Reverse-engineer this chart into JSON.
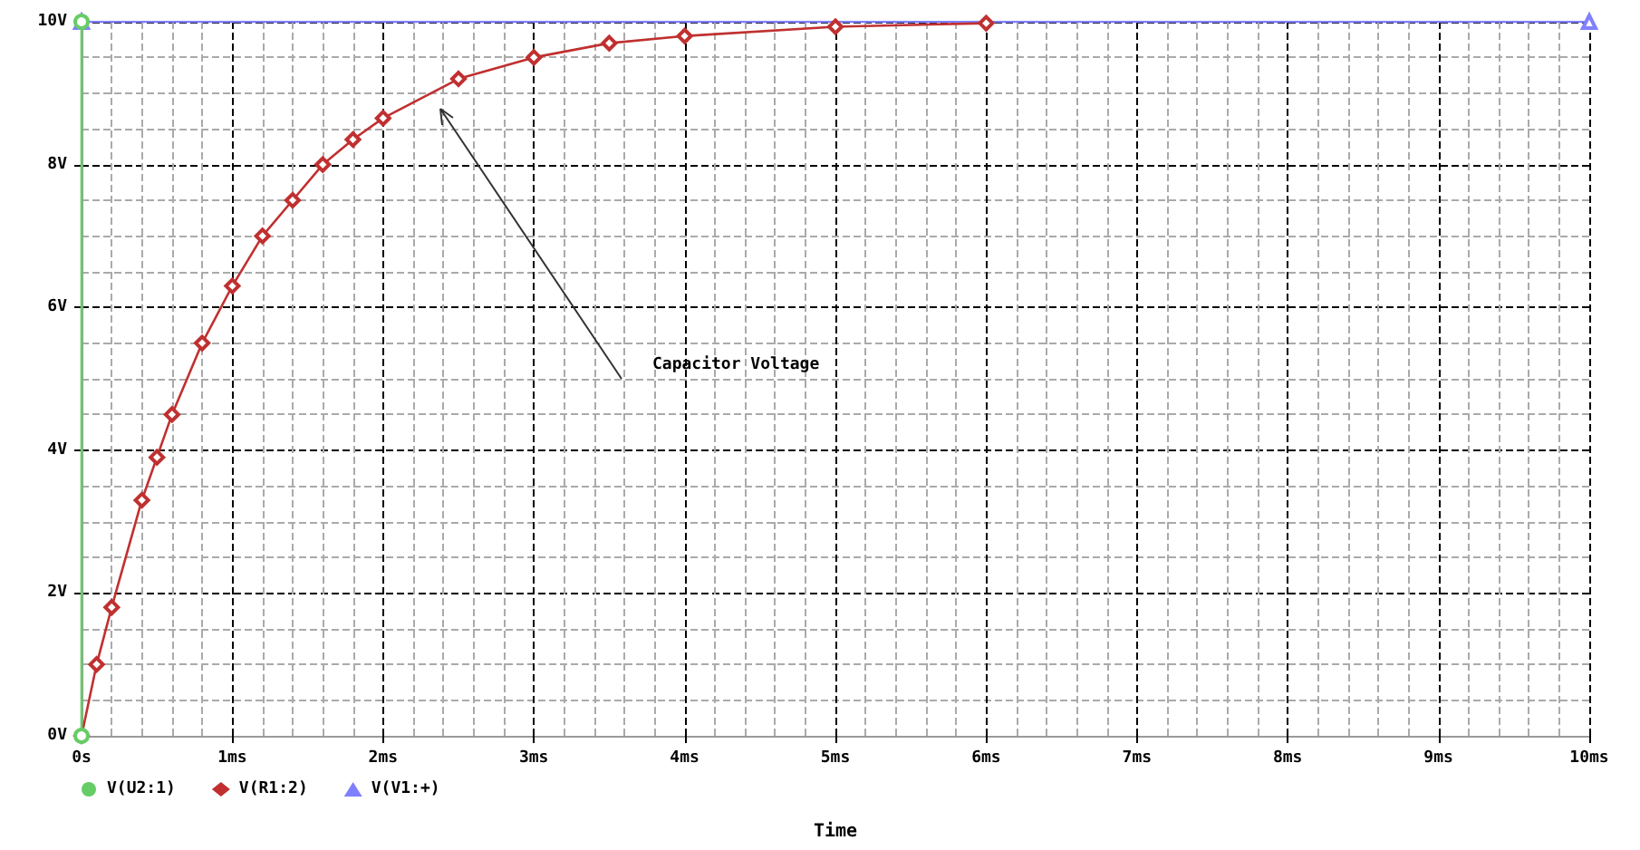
{
  "chart_data": {
    "type": "line",
    "xlabel": "Time",
    "xlim": [
      0,
      10
    ],
    "xticks": [
      {
        "value": 0,
        "label": "0s"
      },
      {
        "value": 1,
        "label": "1ms"
      },
      {
        "value": 2,
        "label": "2ms"
      },
      {
        "value": 3,
        "label": "3ms"
      },
      {
        "value": 4,
        "label": "4ms"
      },
      {
        "value": 5,
        "label": "5ms"
      },
      {
        "value": 6,
        "label": "6ms"
      },
      {
        "value": 7,
        "label": "7ms"
      },
      {
        "value": 8,
        "label": "8ms"
      },
      {
        "value": 9,
        "label": "9ms"
      },
      {
        "value": 10,
        "label": "10ms"
      }
    ],
    "ylim": [
      0,
      10
    ],
    "yticks": [
      {
        "value": 0,
        "label": "0V"
      },
      {
        "value": 2,
        "label": "2V"
      },
      {
        "value": 4,
        "label": "4V"
      },
      {
        "value": 6,
        "label": "6V"
      },
      {
        "value": 8,
        "label": "8V"
      },
      {
        "value": 10,
        "label": "10V"
      }
    ],
    "grid": true,
    "legend": "bottom left",
    "line_style": "solid",
    "series": [
      {
        "name": "V(U2:1)",
        "color": "#66cc66",
        "marker": "circle",
        "x": [
          0,
          0
        ],
        "values": [
          0,
          10
        ]
      },
      {
        "name": "V(R1:2)",
        "color": "#c03030",
        "marker": "diamond",
        "x": [
          0,
          0.1,
          0.2,
          0.4,
          0.5,
          0.6,
          0.8,
          1,
          1.2,
          1.4,
          1.6,
          1.8,
          2,
          2.5,
          3,
          3.5,
          4,
          5,
          6
        ],
        "values": [
          0,
          1.0,
          1.8,
          3.3,
          3.9,
          4.5,
          5.5,
          6.3,
          7.0,
          7.5,
          8.0,
          8.35,
          8.65,
          9.2,
          9.5,
          9.7,
          9.8,
          9.93,
          9.98
        ]
      },
      {
        "name": "V(V1:+)",
        "color": "#8080ff",
        "marker": "triangle",
        "x": [
          0,
          10
        ],
        "values": [
          10,
          10
        ]
      }
    ],
    "annotations": [
      "Capacitor Voltage"
    ]
  }
}
